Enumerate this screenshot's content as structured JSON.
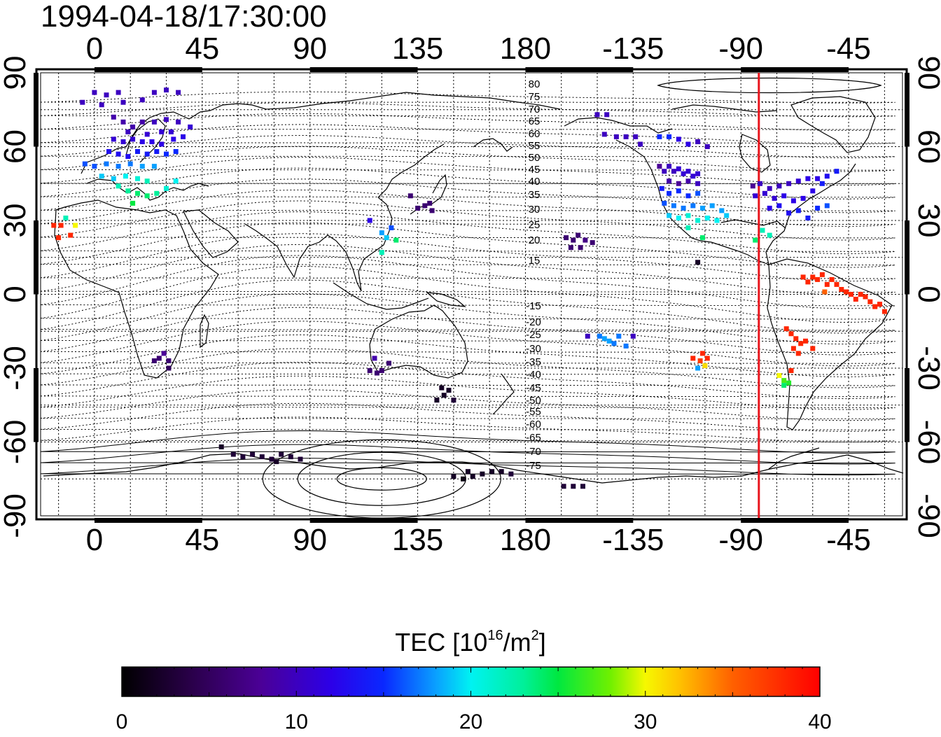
{
  "timestamp": "1994-04-18/17:30:00",
  "map": {
    "lon_ticks": [
      "0",
      "45",
      "90",
      "135",
      "180",
      "-135",
      "-90",
      "-45"
    ],
    "lat_ticks": [
      "90",
      "60",
      "30",
      "0",
      "-30",
      "-60",
      "-90"
    ],
    "lon_range": [
      -22.5,
      337.5
    ],
    "lat_range": [
      -90,
      90
    ],
    "terminator_lon": -82.5,
    "terminator_color": "#e8141c",
    "contour_labels_north": [
      "80",
      "75",
      "70",
      "65",
      "60",
      "55",
      "50",
      "45",
      "40",
      "35",
      "30",
      "25",
      "20",
      "15"
    ],
    "contour_labels_south": [
      "-15",
      "-20",
      "-25",
      "-30",
      "-35",
      "-40",
      "-45",
      "-50",
      "-55",
      "-60",
      "-65",
      "-70",
      "-75"
    ]
  },
  "colorbar": {
    "label_main": "TEC  [10",
    "label_sup": "16",
    "label_mid": "/m",
    "label_sup2": "2",
    "label_end": "]",
    "min": 0,
    "max": 40,
    "ticks": [
      "0",
      "10",
      "20",
      "30",
      "40"
    ]
  },
  "chart_data": {
    "type": "scatter",
    "title": "1994-04-18/17:30:00",
    "xlabel": "",
    "ylabel": "",
    "xlim": [
      -22.5,
      337.5
    ],
    "ylim": [
      -90,
      90
    ],
    "value_name": "TEC",
    "points": [
      {
        "lon": 0,
        "lat": 82,
        "v": 10
      },
      {
        "lon": 5,
        "lat": 81,
        "v": 10
      },
      {
        "lon": 10,
        "lat": 82,
        "v": 10
      },
      {
        "lon": -5,
        "lat": 78,
        "v": 10
      },
      {
        "lon": 3,
        "lat": 77,
        "v": 10
      },
      {
        "lon": 12,
        "lat": 78,
        "v": 10
      },
      {
        "lon": 25,
        "lat": 82,
        "v": 10
      },
      {
        "lon": 30,
        "lat": 83,
        "v": 10
      },
      {
        "lon": 35,
        "lat": 82,
        "v": 10
      },
      {
        "lon": 20,
        "lat": 79,
        "v": 10
      },
      {
        "lon": 8,
        "lat": 72,
        "v": 9
      },
      {
        "lon": 12,
        "lat": 70,
        "v": 9
      },
      {
        "lon": 16,
        "lat": 68,
        "v": 9
      },
      {
        "lon": 20,
        "lat": 70,
        "v": 9
      },
      {
        "lon": 25,
        "lat": 70,
        "v": 10
      },
      {
        "lon": 30,
        "lat": 71,
        "v": 10
      },
      {
        "lon": 35,
        "lat": 70,
        "v": 10
      },
      {
        "lon": 40,
        "lat": 68,
        "v": 11
      },
      {
        "lon": 32,
        "lat": 66,
        "v": 11
      },
      {
        "lon": 28,
        "lat": 66,
        "v": 11
      },
      {
        "lon": 8,
        "lat": 63,
        "v": 11
      },
      {
        "lon": 12,
        "lat": 62,
        "v": 11
      },
      {
        "lon": 16,
        "lat": 63,
        "v": 11
      },
      {
        "lon": 20,
        "lat": 62,
        "v": 12
      },
      {
        "lon": 24,
        "lat": 62,
        "v": 12
      },
      {
        "lon": 28,
        "lat": 61,
        "v": 12
      },
      {
        "lon": 33,
        "lat": 63,
        "v": 12
      },
      {
        "lon": 37,
        "lat": 64,
        "v": 12
      },
      {
        "lon": 14,
        "lat": 66,
        "v": 10
      },
      {
        "lon": 22,
        "lat": 65,
        "v": 11
      },
      {
        "lon": 6,
        "lat": 58,
        "v": 13
      },
      {
        "lon": 10,
        "lat": 57,
        "v": 13
      },
      {
        "lon": 14,
        "lat": 56,
        "v": 13
      },
      {
        "lon": 18,
        "lat": 58,
        "v": 14
      },
      {
        "lon": 22,
        "lat": 57,
        "v": 14
      },
      {
        "lon": 26,
        "lat": 58,
        "v": 14
      },
      {
        "lon": 30,
        "lat": 57,
        "v": 15
      },
      {
        "lon": 34,
        "lat": 58,
        "v": 15
      },
      {
        "lon": -4,
        "lat": 53,
        "v": 16
      },
      {
        "lon": 0,
        "lat": 52,
        "v": 16
      },
      {
        "lon": 5,
        "lat": 53,
        "v": 17
      },
      {
        "lon": 10,
        "lat": 52,
        "v": 17
      },
      {
        "lon": 15,
        "lat": 53,
        "v": 17
      },
      {
        "lon": 20,
        "lat": 52,
        "v": 18
      },
      {
        "lon": 25,
        "lat": 52,
        "v": 18
      },
      {
        "lon": 3,
        "lat": 48,
        "v": 19
      },
      {
        "lon": 8,
        "lat": 47,
        "v": 19
      },
      {
        "lon": 13,
        "lat": 48,
        "v": 20
      },
      {
        "lon": 18,
        "lat": 47,
        "v": 21
      },
      {
        "lon": 22,
        "lat": 46,
        "v": 22
      },
      {
        "lon": 10,
        "lat": 44,
        "v": 22
      },
      {
        "lon": 14,
        "lat": 42,
        "v": 23
      },
      {
        "lon": 18,
        "lat": 41,
        "v": 24
      },
      {
        "lon": 22,
        "lat": 40,
        "v": 24
      },
      {
        "lon": 26,
        "lat": 41,
        "v": 23
      },
      {
        "lon": 30,
        "lat": 43,
        "v": 21
      },
      {
        "lon": 34,
        "lat": 46,
        "v": 20
      },
      {
        "lon": 16,
        "lat": 37,
        "v": 25
      },
      {
        "lon": -17,
        "lat": 28,
        "v": 38
      },
      {
        "lon": -14,
        "lat": 28,
        "v": 38
      },
      {
        "lon": -12,
        "lat": 31,
        "v": 22
      },
      {
        "lon": -8,
        "lat": 28,
        "v": 30
      },
      {
        "lon": -15,
        "lat": 23,
        "v": 38
      },
      {
        "lon": -10,
        "lat": 24,
        "v": 38
      },
      {
        "lon": 27,
        "lat": -26,
        "v": 6
      },
      {
        "lon": 29,
        "lat": -24,
        "v": 8
      },
      {
        "lon": 31,
        "lat": -27,
        "v": 6
      },
      {
        "lon": 25,
        "lat": -27,
        "v": 6
      },
      {
        "lon": 31,
        "lat": -30,
        "v": 5
      },
      {
        "lon": 115,
        "lat": -31,
        "v": 6
      },
      {
        "lon": 118,
        "lat": -32,
        "v": 6
      },
      {
        "lon": 120,
        "lat": -31,
        "v": 6
      },
      {
        "lon": 123,
        "lat": -28,
        "v": 6
      },
      {
        "lon": 117,
        "lat": -26,
        "v": 9
      },
      {
        "lon": 143,
        "lat": -43,
        "v": 2
      },
      {
        "lon": 146,
        "lat": -41,
        "v": 2
      },
      {
        "lon": 148,
        "lat": -39,
        "v": 2
      },
      {
        "lon": 150,
        "lat": -43,
        "v": 3
      },
      {
        "lon": 145,
        "lat": -38,
        "v": 2
      },
      {
        "lon": 132,
        "lat": 40,
        "v": 6
      },
      {
        "lon": 135,
        "lat": 35,
        "v": 6
      },
      {
        "lon": 138,
        "lat": 36,
        "v": 6
      },
      {
        "lon": 140,
        "lat": 37,
        "v": 6
      },
      {
        "lon": 141,
        "lat": 34,
        "v": 6
      },
      {
        "lon": 115,
        "lat": 30,
        "v": 12
      },
      {
        "lon": 120,
        "lat": 25,
        "v": 18
      },
      {
        "lon": 122,
        "lat": 23,
        "v": 19
      },
      {
        "lon": 124,
        "lat": 27,
        "v": 16
      },
      {
        "lon": 126,
        "lat": 22,
        "v": 24
      },
      {
        "lon": 120,
        "lat": 17,
        "v": 22
      },
      {
        "lon": 197,
        "lat": 23,
        "v": 6
      },
      {
        "lon": 200,
        "lat": 22,
        "v": 6
      },
      {
        "lon": 202,
        "lat": 24,
        "v": 6
      },
      {
        "lon": 205,
        "lat": 22,
        "v": 7
      },
      {
        "lon": 199,
        "lat": 19,
        "v": 6
      },
      {
        "lon": 203,
        "lat": 19,
        "v": 6
      },
      {
        "lon": 208,
        "lat": 21,
        "v": 6
      },
      {
        "lon": 210,
        "lat": 73,
        "v": 10
      },
      {
        "lon": 214,
        "lat": 73,
        "v": 10
      },
      {
        "lon": 213,
        "lat": 65,
        "v": 10
      },
      {
        "lon": 218,
        "lat": 64,
        "v": 10
      },
      {
        "lon": 222,
        "lat": 64,
        "v": 10
      },
      {
        "lon": 226,
        "lat": 64,
        "v": 10
      },
      {
        "lon": 228,
        "lat": 61,
        "v": 10
      },
      {
        "lon": 236,
        "lat": 64,
        "v": 15
      },
      {
        "lon": 240,
        "lat": 64,
        "v": 15
      },
      {
        "lon": 244,
        "lat": 63,
        "v": 12
      },
      {
        "lon": 248,
        "lat": 61,
        "v": 12
      },
      {
        "lon": 252,
        "lat": 62,
        "v": 10
      },
      {
        "lon": 256,
        "lat": 60,
        "v": 10
      },
      {
        "lon": 236,
        "lat": 52,
        "v": 8
      },
      {
        "lon": 238,
        "lat": 50,
        "v": 10
      },
      {
        "lon": 240,
        "lat": 52,
        "v": 10
      },
      {
        "lon": 242,
        "lat": 50,
        "v": 10
      },
      {
        "lon": 244,
        "lat": 51,
        "v": 11
      },
      {
        "lon": 246,
        "lat": 49,
        "v": 11
      },
      {
        "lon": 248,
        "lat": 50,
        "v": 11
      },
      {
        "lon": 250,
        "lat": 48,
        "v": 11
      },
      {
        "lon": 252,
        "lat": 49,
        "v": 11
      },
      {
        "lon": 240,
        "lat": 46,
        "v": 9
      },
      {
        "lon": 244,
        "lat": 45,
        "v": 8
      },
      {
        "lon": 248,
        "lat": 46,
        "v": 9
      },
      {
        "lon": 252,
        "lat": 45,
        "v": 10
      },
      {
        "lon": 237,
        "lat": 43,
        "v": 14
      },
      {
        "lon": 240,
        "lat": 41,
        "v": 15
      },
      {
        "lon": 244,
        "lat": 42,
        "v": 15
      },
      {
        "lon": 248,
        "lat": 40,
        "v": 15
      },
      {
        "lon": 252,
        "lat": 41,
        "v": 16
      },
      {
        "lon": 238,
        "lat": 37,
        "v": 16
      },
      {
        "lon": 242,
        "lat": 36,
        "v": 17
      },
      {
        "lon": 246,
        "lat": 35,
        "v": 17
      },
      {
        "lon": 250,
        "lat": 36,
        "v": 17
      },
      {
        "lon": 254,
        "lat": 35,
        "v": 18
      },
      {
        "lon": 258,
        "lat": 36,
        "v": 18
      },
      {
        "lon": 262,
        "lat": 34,
        "v": 18
      },
      {
        "lon": 240,
        "lat": 32,
        "v": 19
      },
      {
        "lon": 244,
        "lat": 31,
        "v": 20
      },
      {
        "lon": 248,
        "lat": 32,
        "v": 21
      },
      {
        "lon": 252,
        "lat": 30,
        "v": 21
      },
      {
        "lon": 256,
        "lat": 31,
        "v": 20
      },
      {
        "lon": 260,
        "lat": 30,
        "v": 20
      },
      {
        "lon": 264,
        "lat": 32,
        "v": 19
      },
      {
        "lon": 248,
        "lat": 27,
        "v": 22
      },
      {
        "lon": 254,
        "lat": 23,
        "v": 24
      },
      {
        "lon": 252,
        "lat": 13,
        "v": 2
      },
      {
        "lon": 275,
        "lat": 44,
        "v": 8
      },
      {
        "lon": 278,
        "lat": 45,
        "v": 10
      },
      {
        "lon": 282,
        "lat": 43,
        "v": 10
      },
      {
        "lon": 286,
        "lat": 44,
        "v": 10
      },
      {
        "lon": 290,
        "lat": 45,
        "v": 10
      },
      {
        "lon": 294,
        "lat": 46,
        "v": 11
      },
      {
        "lon": 298,
        "lat": 47,
        "v": 12
      },
      {
        "lon": 302,
        "lat": 47,
        "v": 12
      },
      {
        "lon": 306,
        "lat": 48,
        "v": 13
      },
      {
        "lon": 310,
        "lat": 50,
        "v": 14
      },
      {
        "lon": 276,
        "lat": 40,
        "v": 11
      },
      {
        "lon": 280,
        "lat": 41,
        "v": 11
      },
      {
        "lon": 284,
        "lat": 39,
        "v": 11
      },
      {
        "lon": 288,
        "lat": 40,
        "v": 12
      },
      {
        "lon": 292,
        "lat": 38,
        "v": 12
      },
      {
        "lon": 296,
        "lat": 39,
        "v": 12
      },
      {
        "lon": 300,
        "lat": 42,
        "v": 12
      },
      {
        "lon": 304,
        "lat": 45,
        "v": 14
      },
      {
        "lon": 282,
        "lat": 35,
        "v": 12
      },
      {
        "lon": 286,
        "lat": 36,
        "v": 13
      },
      {
        "lon": 290,
        "lat": 33,
        "v": 13
      },
      {
        "lon": 294,
        "lat": 34,
        "v": 14
      },
      {
        "lon": 298,
        "lat": 31,
        "v": 14
      },
      {
        "lon": 302,
        "lat": 35,
        "v": 15
      },
      {
        "lon": 306,
        "lat": 36,
        "v": 16
      },
      {
        "lon": 279,
        "lat": 26,
        "v": 22
      },
      {
        "lon": 282,
        "lat": 24,
        "v": 22
      },
      {
        "lon": 276,
        "lat": 22,
        "v": 24
      },
      {
        "lon": 296,
        "lat": 7,
        "v": 38
      },
      {
        "lon": 298,
        "lat": 5,
        "v": 38
      },
      {
        "lon": 300,
        "lat": 7,
        "v": 38
      },
      {
        "lon": 302,
        "lat": 6,
        "v": 38
      },
      {
        "lon": 304,
        "lat": 8,
        "v": 38
      },
      {
        "lon": 306,
        "lat": 4,
        "v": 38
      },
      {
        "lon": 308,
        "lat": 6,
        "v": 38
      },
      {
        "lon": 310,
        "lat": 4,
        "v": 38
      },
      {
        "lon": 312,
        "lat": 2,
        "v": 38
      },
      {
        "lon": 314,
        "lat": 1,
        "v": 38
      },
      {
        "lon": 316,
        "lat": 0,
        "v": 38
      },
      {
        "lon": 318,
        "lat": -2,
        "v": 38
      },
      {
        "lon": 320,
        "lat": 0,
        "v": 38
      },
      {
        "lon": 322,
        "lat": -1,
        "v": 38
      },
      {
        "lon": 324,
        "lat": -3,
        "v": 38
      },
      {
        "lon": 326,
        "lat": -5,
        "v": 38
      },
      {
        "lon": 328,
        "lat": -4,
        "v": 38
      },
      {
        "lon": 330,
        "lat": -7,
        "v": 38
      },
      {
        "lon": 305,
        "lat": 1,
        "v": 35
      },
      {
        "lon": 289,
        "lat": -14,
        "v": 38
      },
      {
        "lon": 291,
        "lat": -16,
        "v": 38
      },
      {
        "lon": 293,
        "lat": -18,
        "v": 38
      },
      {
        "lon": 295,
        "lat": -20,
        "v": 38
      },
      {
        "lon": 297,
        "lat": -19,
        "v": 38
      },
      {
        "lon": 300,
        "lat": -22,
        "v": 38
      },
      {
        "lon": 292,
        "lat": -22,
        "v": 38
      },
      {
        "lon": 294,
        "lat": -24,
        "v": 38
      },
      {
        "lon": 286,
        "lat": -33,
        "v": 30
      },
      {
        "lon": 288,
        "lat": -35,
        "v": 27
      },
      {
        "lon": 290,
        "lat": -36,
        "v": 26
      },
      {
        "lon": 288,
        "lat": -37,
        "v": 24
      },
      {
        "lon": 291,
        "lat": -31,
        "v": 38
      },
      {
        "lon": 206,
        "lat": -17,
        "v": 10
      },
      {
        "lon": 211,
        "lat": -17,
        "v": 17
      },
      {
        "lon": 213,
        "lat": -18,
        "v": 18
      },
      {
        "lon": 215,
        "lat": -19,
        "v": 18
      },
      {
        "lon": 217,
        "lat": -20,
        "v": 17
      },
      {
        "lon": 219,
        "lat": -17,
        "v": 17
      },
      {
        "lon": 222,
        "lat": -21,
        "v": 17
      },
      {
        "lon": 225,
        "lat": -17,
        "v": 10
      },
      {
        "lon": 250,
        "lat": -26,
        "v": 38
      },
      {
        "lon": 253,
        "lat": -27,
        "v": 37
      },
      {
        "lon": 255,
        "lat": -29,
        "v": 31
      },
      {
        "lon": 252,
        "lat": -30,
        "v": 18
      },
      {
        "lon": 254,
        "lat": -24,
        "v": 38
      },
      {
        "lon": 256,
        "lat": -26,
        "v": 38
      },
      {
        "lon": 53,
        "lat": -62,
        "v": 2
      },
      {
        "lon": 58,
        "lat": -65,
        "v": 3
      },
      {
        "lon": 62,
        "lat": -66,
        "v": 3
      },
      {
        "lon": 66,
        "lat": -65,
        "v": 3
      },
      {
        "lon": 70,
        "lat": -66,
        "v": 3
      },
      {
        "lon": 74,
        "lat": -67,
        "v": 3
      },
      {
        "lon": 78,
        "lat": -65,
        "v": 3
      },
      {
        "lon": 82,
        "lat": -66,
        "v": 3
      },
      {
        "lon": 86,
        "lat": -67,
        "v": 3
      },
      {
        "lon": 76,
        "lat": -68,
        "v": 2
      },
      {
        "lon": 150,
        "lat": -74,
        "v": 2
      },
      {
        "lon": 154,
        "lat": -75,
        "v": 1
      },
      {
        "lon": 158,
        "lat": -74,
        "v": 2
      },
      {
        "lon": 162,
        "lat": -73,
        "v": 2
      },
      {
        "lon": 166,
        "lat": -72,
        "v": 2
      },
      {
        "lon": 170,
        "lat": -72,
        "v": 2
      },
      {
        "lon": 174,
        "lat": -73,
        "v": 3
      },
      {
        "lon": 156,
        "lat": -72,
        "v": 2
      },
      {
        "lon": 196,
        "lat": -78,
        "v": 3
      },
      {
        "lon": 200,
        "lat": -78,
        "v": 3
      },
      {
        "lon": 204,
        "lat": -78,
        "v": 3
      }
    ]
  }
}
